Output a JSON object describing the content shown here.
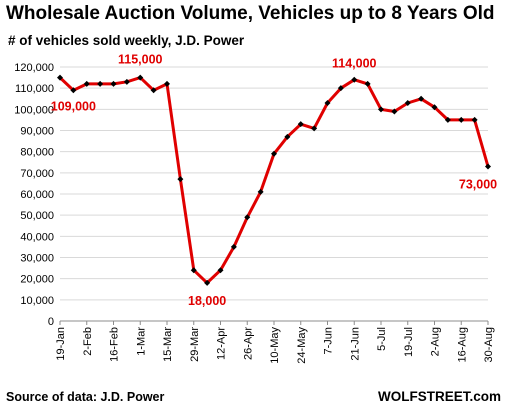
{
  "header": {
    "title": "Wholesale Auction Volume, Vehicles up to 8 Years Old",
    "subtitle": "# of vehicles sold weekly, J.D. Power"
  },
  "footer": {
    "source": "Source of data: J.D. Power",
    "brand": "WOLFSTREET.com"
  },
  "colors": {
    "line": "#e00000",
    "marker": "#000000",
    "grid": "#d9d9d9",
    "annotation": "#e00000"
  },
  "chart_data": {
    "type": "line",
    "title": "Wholesale Auction Volume, Vehicles up to 8 Years Old",
    "subtitle": "# of vehicles sold weekly, J.D. Power",
    "ylim": [
      0,
      120000
    ],
    "ytick_labels": [
      "0",
      "10,000",
      "20,000",
      "30,000",
      "40,000",
      "50,000",
      "60,000",
      "70,000",
      "80,000",
      "90,000",
      "100,000",
      "110,000",
      "120,000"
    ],
    "xtick_labels": [
      "19-Jan",
      "2-Feb",
      "16-Feb",
      "1-Mar",
      "15-Mar",
      "29-Mar",
      "12-Apr",
      "26-Apr",
      "10-May",
      "24-May",
      "7-Jun",
      "21-Jun",
      "5-Jul",
      "19-Jul",
      "2-Aug",
      "16-Aug",
      "30-Aug"
    ],
    "x": [
      "19-Jan",
      "26-Jan",
      "2-Feb",
      "9-Feb",
      "16-Feb",
      "23-Feb",
      "1-Mar",
      "8-Mar",
      "15-Mar",
      "22-Mar",
      "29-Mar",
      "5-Apr",
      "12-Apr",
      "19-Apr",
      "26-Apr",
      "3-May",
      "10-May",
      "17-May",
      "24-May",
      "31-May",
      "7-Jun",
      "14-Jun",
      "21-Jun",
      "28-Jun",
      "5-Jul",
      "12-Jul",
      "19-Jul",
      "26-Jul",
      "2-Aug",
      "9-Aug",
      "16-Aug",
      "23-Aug",
      "30-Aug"
    ],
    "series": [
      {
        "values": [
          115000,
          109000,
          112000,
          112000,
          112000,
          113000,
          115000,
          109000,
          112000,
          67000,
          24000,
          18000,
          24000,
          35000,
          49000,
          61000,
          79000,
          87000,
          93000,
          91000,
          103000,
          110000,
          114000,
          112000,
          100000,
          99000,
          103000,
          105000,
          101000,
          95000,
          95000,
          95000,
          73000
        ]
      }
    ],
    "annotations": [
      {
        "text": "109,000",
        "index": 1
      },
      {
        "text": "115,000",
        "index": 6
      },
      {
        "text": "18,000",
        "index": 11
      },
      {
        "text": "114,000",
        "index": 22
      },
      {
        "text": "73,000",
        "index": 32
      }
    ],
    "grid": true,
    "legend": "none"
  }
}
